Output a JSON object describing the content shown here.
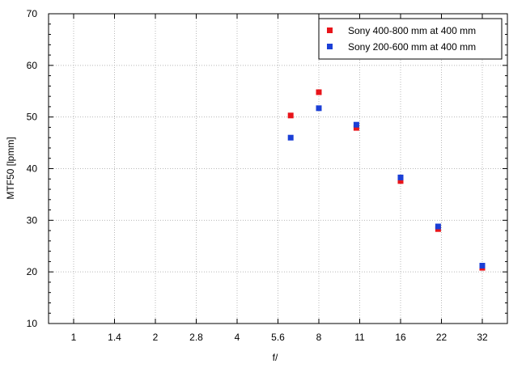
{
  "chart_data": {
    "type": "scatter",
    "title": "",
    "xlabel": "f/",
    "ylabel": "MTF50 [lpmm]",
    "ylim": [
      10,
      70
    ],
    "yticks": [
      10,
      20,
      30,
      40,
      50,
      60,
      70
    ],
    "xscale": "log2",
    "xticks": [
      "1",
      "1.4",
      "2",
      "2.8",
      "4",
      "5.6",
      "8",
      "11",
      "16",
      "22",
      "32"
    ],
    "xlim_stops": [
      0,
      11
    ],
    "grid": true,
    "legend_position": "top-right",
    "series": [
      {
        "name": "Sony 400-800 mm at 400 mm",
        "color": "#e8141a",
        "x": [
          6.3,
          8,
          11,
          16,
          22,
          32
        ],
        "y": [
          50.3,
          54.8,
          47.9,
          37.6,
          28.3,
          20.8
        ]
      },
      {
        "name": "Sony 200-600 mm at 400 mm",
        "color": "#1b3fd6",
        "x": [
          6.3,
          8,
          11,
          16,
          22,
          32
        ],
        "y": [
          46.0,
          51.7,
          48.5,
          38.3,
          28.8,
          21.2
        ]
      }
    ]
  }
}
